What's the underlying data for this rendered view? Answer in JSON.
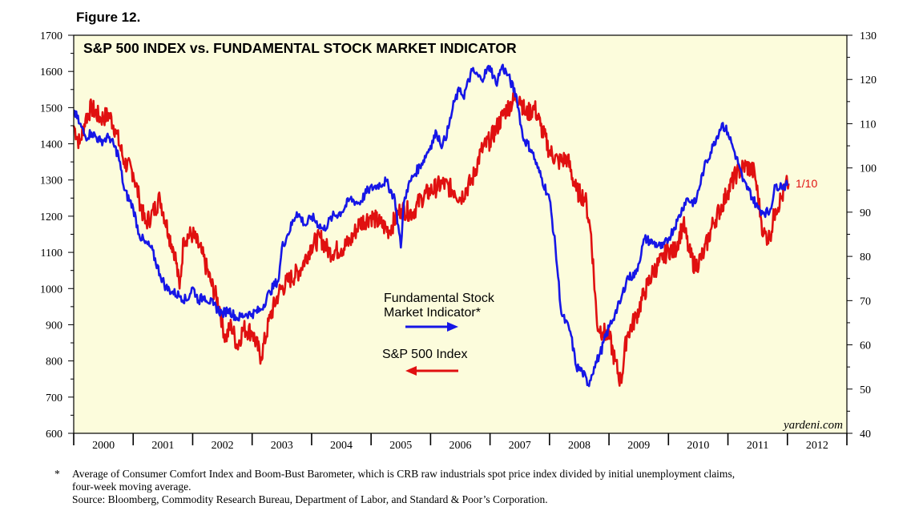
{
  "figure_label": "Figure 12.",
  "watermark": "yardeni.com",
  "footnotes": {
    "marker": "*",
    "line1": "Average of Consumer Comfort Index and Boom-Bust Barometer, which is CRB raw industrials spot price index divided by initial unemployment claims,",
    "line2": "four-week moving average.",
    "source": "Source: Bloomberg, Commodity Research Bureau, Department of Labor, and Standard & Poor’s Corporation."
  },
  "colors": {
    "plot_background": "#fcfcdc",
    "sp500": "#e01010",
    "fundamental": "#1616e6",
    "axis": "#000000",
    "latest_label": "#e01010"
  },
  "chart_data": {
    "type": "line",
    "title": "S&P 500 INDEX vs. FUNDAMENTAL STOCK MARKET INDICATOR",
    "x_range": [
      2000,
      2013
    ],
    "x_tick_labels": [
      "2000",
      "2001",
      "2002",
      "2003",
      "2004",
      "2005",
      "2006",
      "2007",
      "2008",
      "2009",
      "2010",
      "2011",
      "2012"
    ],
    "y_left": {
      "range": [
        600,
        1700
      ],
      "ticks": [
        600,
        700,
        800,
        900,
        1000,
        1100,
        1200,
        1300,
        1400,
        1500,
        1600,
        1700
      ]
    },
    "y_right": {
      "range": [
        40,
        130
      ],
      "ticks": [
        40,
        50,
        60,
        70,
        80,
        90,
        100,
        110,
        120,
        130
      ]
    },
    "latest_label": "1/10",
    "legend": [
      {
        "name": "Fundamental Stock Market Indicator*",
        "line1": "Fundamental Stock",
        "line2": "Market Indicator*",
        "axis": "right",
        "color": "#1616e6"
      },
      {
        "name": "S&P 500 Index",
        "line1": "S&P 500 Index",
        "axis": "left",
        "color": "#e01010"
      }
    ],
    "series": [
      {
        "name": "S&P 500 Index",
        "axis": "left",
        "x": [
          2000.0,
          2000.1,
          2000.2,
          2000.3,
          2000.45,
          2000.6,
          2000.7,
          2000.85,
          2001.0,
          2001.1,
          2001.2,
          2001.3,
          2001.45,
          2001.6,
          2001.7,
          2001.78,
          2001.85,
          2002.0,
          2002.15,
          2002.3,
          2002.45,
          2002.55,
          2002.65,
          2002.75,
          2002.85,
          2003.0,
          2003.15,
          2003.3,
          2003.45,
          2003.6,
          2003.8,
          2004.0,
          2004.15,
          2004.3,
          2004.5,
          2004.65,
          2004.8,
          2005.0,
          2005.15,
          2005.3,
          2005.5,
          2005.7,
          2005.85,
          2006.0,
          2006.2,
          2006.4,
          2006.5,
          2006.7,
          2006.85,
          2007.0,
          2007.1,
          2007.25,
          2007.4,
          2007.5,
          2007.6,
          2007.75,
          2007.85,
          2008.0,
          2008.15,
          2008.3,
          2008.45,
          2008.6,
          2008.7,
          2008.8,
          2008.9,
          2009.0,
          2009.1,
          2009.2,
          2009.3,
          2009.45,
          2009.6,
          2009.75,
          2009.9,
          2010.0,
          2010.1,
          2010.25,
          2010.35,
          2010.45,
          2010.6,
          2010.75,
          2010.9,
          2011.0,
          2011.15,
          2011.3,
          2011.45,
          2011.55,
          2011.6,
          2011.7,
          2011.8,
          2011.9,
          2012.0,
          2012.02
        ],
        "values": [
          1450,
          1400,
          1470,
          1500,
          1470,
          1480,
          1440,
          1350,
          1320,
          1250,
          1180,
          1200,
          1250,
          1150,
          1100,
          1000,
          1140,
          1150,
          1100,
          1020,
          950,
          860,
          900,
          840,
          890,
          880,
          810,
          920,
          990,
          1020,
          1050,
          1120,
          1140,
          1100,
          1110,
          1130,
          1180,
          1200,
          1180,
          1160,
          1220,
          1210,
          1250,
          1270,
          1290,
          1270,
          1250,
          1300,
          1380,
          1410,
          1440,
          1490,
          1520,
          1530,
          1480,
          1500,
          1450,
          1380,
          1350,
          1360,
          1270,
          1250,
          1150,
          900,
          880,
          870,
          800,
          740,
          870,
          920,
          990,
          1050,
          1080,
          1110,
          1100,
          1180,
          1100,
          1060,
          1100,
          1180,
          1230,
          1270,
          1320,
          1340,
          1320,
          1200,
          1150,
          1140,
          1220,
          1250,
          1290,
          1290
        ]
      },
      {
        "name": "Fundamental Stock Market Indicator",
        "axis": "right",
        "x": [
          2000.0,
          2000.1,
          2000.2,
          2000.3,
          2000.45,
          2000.6,
          2000.75,
          2000.85,
          2001.0,
          2001.1,
          2001.2,
          2001.3,
          2001.45,
          2001.55,
          2001.65,
          2001.8,
          2001.9,
          2002.0,
          2002.1,
          2002.2,
          2002.35,
          2002.5,
          2002.6,
          2002.75,
          2002.9,
          2003.0,
          2003.15,
          2003.3,
          2003.45,
          2003.5,
          2003.6,
          2003.75,
          2003.9,
          2004.0,
          2004.2,
          2004.35,
          2004.5,
          2004.65,
          2004.8,
          2004.95,
          2005.1,
          2005.25,
          2005.4,
          2005.5,
          2005.55,
          2005.6,
          2005.7,
          2005.85,
          2006.0,
          2006.1,
          2006.2,
          2006.3,
          2006.4,
          2006.5,
          2006.55,
          2006.7,
          2006.85,
          2007.0,
          2007.1,
          2007.2,
          2007.3,
          2007.45,
          2007.55,
          2007.7,
          2007.8,
          2008.0,
          2008.1,
          2008.2,
          2008.35,
          2008.45,
          2008.55,
          2008.65,
          2008.75,
          2008.85,
          2009.0,
          2009.1,
          2009.2,
          2009.3,
          2009.45,
          2009.6,
          2009.75,
          2009.9,
          2010.0,
          2010.15,
          2010.3,
          2010.45,
          2010.6,
          2010.75,
          2010.9,
          2011.0,
          2011.1,
          2011.2,
          2011.25,
          2011.35,
          2011.5,
          2011.6,
          2011.7,
          2011.8,
          2011.9,
          2012.0
        ],
        "values": [
          113,
          110,
          107,
          108,
          106,
          107,
          103,
          95,
          91,
          85,
          83,
          82,
          76,
          73,
          72,
          71,
          70,
          73,
          70,
          71,
          69,
          67,
          68,
          66,
          67,
          67,
          68,
          72,
          75,
          82,
          85,
          90,
          87,
          89,
          86,
          89,
          90,
          93,
          92,
          95,
          96,
          97,
          93,
          82,
          92,
          95,
          98,
          101,
          105,
          108,
          105,
          109,
          115,
          118,
          116,
          122,
          120,
          123,
          119,
          123,
          121,
          116,
          107,
          104,
          100,
          93,
          82,
          67,
          63,
          55,
          54,
          51,
          55,
          58,
          64,
          67,
          70,
          75,
          76,
          84,
          83,
          82,
          84,
          88,
          93,
          92,
          100,
          105,
          110,
          108,
          104,
          100,
          97,
          95,
          91,
          90,
          90,
          96,
          96,
          96
        ]
      }
    ]
  }
}
